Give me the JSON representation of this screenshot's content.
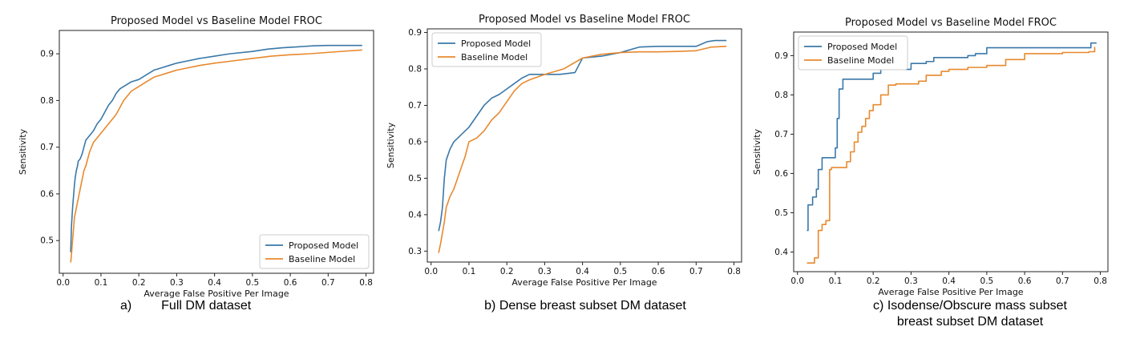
{
  "colors": {
    "proposed": "#3a78a8",
    "baseline": "#e8892e"
  },
  "chart_data": [
    {
      "type": "line",
      "title": "Proposed Model vs Baseline Model FROC",
      "xlabel": "Average False Positive Per Image",
      "ylabel": "Sensitivity",
      "xlim": [
        -0.01,
        0.82
      ],
      "ylim": [
        0.43,
        0.95
      ],
      "xticks": [
        "0.0",
        "0.1",
        "0.2",
        "0.3",
        "0.4",
        "0.5",
        "0.6",
        "0.7",
        "0.8"
      ],
      "yticks": [
        "0.5",
        "0.6",
        "0.7",
        "0.8",
        "0.9"
      ],
      "legend_position": "lower-right",
      "grid": false,
      "caption_label": "a)",
      "caption_text": "Full DM dataset",
      "series": [
        {
          "name": "Proposed Model",
          "x": [
            0.02,
            0.022,
            0.025,
            0.028,
            0.03,
            0.032,
            0.035,
            0.038,
            0.04,
            0.045,
            0.05,
            0.055,
            0.06,
            0.065,
            0.07,
            0.08,
            0.09,
            0.1,
            0.11,
            0.12,
            0.13,
            0.14,
            0.15,
            0.16,
            0.18,
            0.2,
            0.22,
            0.24,
            0.26,
            0.28,
            0.3,
            0.33,
            0.36,
            0.4,
            0.44,
            0.5,
            0.54,
            0.58,
            0.62,
            0.66,
            0.7,
            0.74,
            0.79
          ],
          "y": [
            0.475,
            0.53,
            0.57,
            0.6,
            0.62,
            0.635,
            0.65,
            0.66,
            0.67,
            0.675,
            0.685,
            0.7,
            0.715,
            0.72,
            0.725,
            0.735,
            0.75,
            0.76,
            0.775,
            0.79,
            0.8,
            0.815,
            0.825,
            0.83,
            0.84,
            0.845,
            0.855,
            0.865,
            0.87,
            0.875,
            0.88,
            0.885,
            0.89,
            0.895,
            0.9,
            0.905,
            0.91,
            0.913,
            0.915,
            0.917,
            0.918,
            0.918,
            0.918
          ]
        },
        {
          "name": "Baseline Model",
          "x": [
            0.02,
            0.022,
            0.025,
            0.028,
            0.03,
            0.035,
            0.04,
            0.045,
            0.05,
            0.055,
            0.06,
            0.07,
            0.08,
            0.09,
            0.1,
            0.11,
            0.12,
            0.13,
            0.14,
            0.15,
            0.16,
            0.18,
            0.2,
            0.22,
            0.24,
            0.26,
            0.28,
            0.3,
            0.33,
            0.36,
            0.4,
            0.45,
            0.5,
            0.55,
            0.6,
            0.65,
            0.7,
            0.75,
            0.79
          ],
          "y": [
            0.453,
            0.47,
            0.5,
            0.53,
            0.55,
            0.57,
            0.59,
            0.61,
            0.63,
            0.65,
            0.66,
            0.69,
            0.71,
            0.72,
            0.73,
            0.74,
            0.75,
            0.76,
            0.77,
            0.785,
            0.8,
            0.82,
            0.83,
            0.84,
            0.85,
            0.855,
            0.86,
            0.865,
            0.87,
            0.875,
            0.88,
            0.885,
            0.89,
            0.895,
            0.898,
            0.9,
            0.903,
            0.906,
            0.908
          ]
        }
      ]
    },
    {
      "type": "line",
      "title": "Proposed Model vs Baseline Model FROC",
      "xlabel": "Average False Positive Per Image",
      "ylabel": "Sensitivity",
      "xlim": [
        -0.01,
        0.82
      ],
      "ylim": [
        0.27,
        0.91
      ],
      "xticks": [
        "0.0",
        "0.1",
        "0.2",
        "0.3",
        "0.4",
        "0.5",
        "0.6",
        "0.7",
        "0.8"
      ],
      "yticks": [
        "0.3",
        "0.4",
        "0.5",
        "0.6",
        "0.7",
        "0.8",
        "0.9"
      ],
      "legend_position": "upper-left",
      "grid": false,
      "caption_label": "b)",
      "caption_text": "Dense breast subset DM dataset",
      "series": [
        {
          "name": "Proposed Model",
          "x": [
            0.02,
            0.025,
            0.03,
            0.035,
            0.04,
            0.05,
            0.06,
            0.07,
            0.08,
            0.1,
            0.12,
            0.14,
            0.16,
            0.18,
            0.2,
            0.22,
            0.24,
            0.26,
            0.3,
            0.34,
            0.38,
            0.4,
            0.45,
            0.5,
            0.55,
            0.6,
            0.65,
            0.7,
            0.73,
            0.75,
            0.78
          ],
          "y": [
            0.355,
            0.38,
            0.42,
            0.5,
            0.55,
            0.58,
            0.6,
            0.61,
            0.62,
            0.64,
            0.67,
            0.7,
            0.72,
            0.73,
            0.745,
            0.76,
            0.775,
            0.785,
            0.785,
            0.785,
            0.79,
            0.83,
            0.835,
            0.845,
            0.86,
            0.862,
            0.862,
            0.862,
            0.875,
            0.878,
            0.878
          ]
        },
        {
          "name": "Baseline Model",
          "x": [
            0.02,
            0.025,
            0.03,
            0.035,
            0.04,
            0.05,
            0.06,
            0.07,
            0.08,
            0.09,
            0.1,
            0.12,
            0.14,
            0.16,
            0.18,
            0.2,
            0.22,
            0.24,
            0.26,
            0.3,
            0.35,
            0.4,
            0.45,
            0.5,
            0.55,
            0.6,
            0.65,
            0.7,
            0.74,
            0.78
          ],
          "y": [
            0.295,
            0.32,
            0.35,
            0.38,
            0.42,
            0.45,
            0.47,
            0.5,
            0.53,
            0.56,
            0.6,
            0.61,
            0.63,
            0.66,
            0.68,
            0.71,
            0.74,
            0.76,
            0.77,
            0.785,
            0.8,
            0.83,
            0.84,
            0.845,
            0.847,
            0.847,
            0.848,
            0.85,
            0.86,
            0.862
          ]
        }
      ]
    },
    {
      "type": "line",
      "title": "Proposed Model vs Baseline Model FROC",
      "xlabel": "Average False Positive Per Image",
      "ylabel": "Sensitivity",
      "xlim": [
        -0.01,
        0.82
      ],
      "ylim": [
        0.35,
        0.96
      ],
      "xticks": [
        "0.0",
        "0.1",
        "0.2",
        "0.3",
        "0.4",
        "0.5",
        "0.6",
        "0.7",
        "0.8"
      ],
      "yticks": [
        "0.4",
        "0.5",
        "0.6",
        "0.7",
        "0.8",
        "0.9"
      ],
      "legend_position": "upper-left",
      "grid": false,
      "caption_label": "c)",
      "caption_text": "Isodense/Obscure mass subset",
      "caption_text2": "breast subset DM dataset",
      "series": [
        {
          "name": "Proposed Model",
          "x": [
            0.025,
            0.028,
            0.04,
            0.05,
            0.055,
            0.065,
            0.075,
            0.1,
            0.105,
            0.11,
            0.12,
            0.2,
            0.22,
            0.3,
            0.34,
            0.36,
            0.45,
            0.47,
            0.5,
            0.6,
            0.7,
            0.76,
            0.775,
            0.79
          ],
          "y": [
            0.455,
            0.52,
            0.54,
            0.56,
            0.61,
            0.64,
            0.64,
            0.665,
            0.74,
            0.815,
            0.84,
            0.855,
            0.865,
            0.88,
            0.885,
            0.895,
            0.9,
            0.905,
            0.92,
            0.92,
            0.92,
            0.92,
            0.932,
            0.932
          ],
          "step": true
        },
        {
          "name": "Baseline Model",
          "x": [
            0.025,
            0.045,
            0.055,
            0.065,
            0.075,
            0.085,
            0.09,
            0.13,
            0.14,
            0.15,
            0.16,
            0.17,
            0.18,
            0.19,
            0.2,
            0.22,
            0.24,
            0.26,
            0.32,
            0.34,
            0.38,
            0.4,
            0.45,
            0.5,
            0.55,
            0.6,
            0.7,
            0.77,
            0.785
          ],
          "y": [
            0.372,
            0.385,
            0.455,
            0.47,
            0.48,
            0.61,
            0.615,
            0.63,
            0.655,
            0.68,
            0.705,
            0.72,
            0.74,
            0.76,
            0.775,
            0.8,
            0.825,
            0.828,
            0.835,
            0.85,
            0.86,
            0.865,
            0.87,
            0.875,
            0.89,
            0.905,
            0.908,
            0.91,
            0.922
          ],
          "step": true
        }
      ]
    }
  ]
}
